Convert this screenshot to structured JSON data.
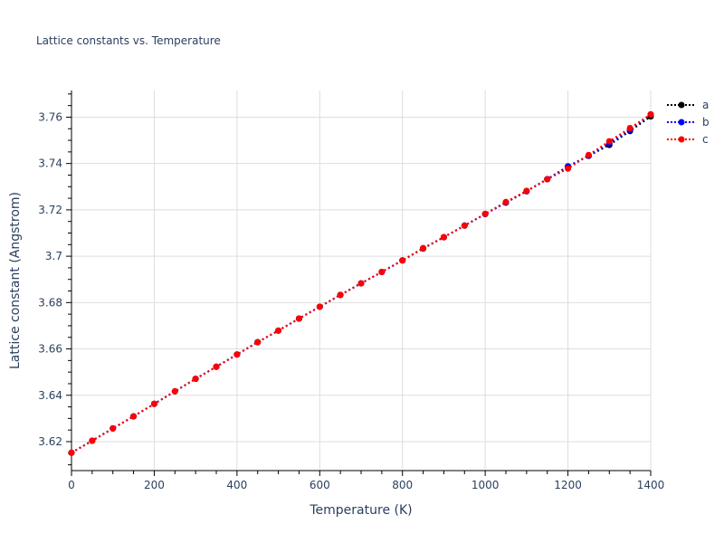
{
  "title": "Lattice constants vs. Temperature",
  "legend": [
    {
      "name": "a",
      "color": "#000000"
    },
    {
      "name": "b",
      "color": "#0000ff"
    },
    {
      "name": "c",
      "color": "#ff0000"
    }
  ],
  "chart_data": {
    "type": "line",
    "title": "Lattice constants vs. Temperature",
    "xlabel": "Temperature (K)",
    "ylabel": "Lattice constant (Angstrom)",
    "xlim": [
      0,
      1400
    ],
    "ylim": [
      3.6075,
      3.7715
    ],
    "x_ticks": [
      0,
      200,
      400,
      600,
      800,
      1000,
      1200,
      1400
    ],
    "y_ticks": [
      3.62,
      3.64,
      3.66,
      3.68,
      3.7,
      3.72,
      3.74,
      3.76
    ],
    "y_tick_labels": [
      "3.62",
      "3.64",
      "3.66",
      "3.68",
      "3.7",
      "3.72",
      "3.74",
      "3.76"
    ],
    "grid": true,
    "legend_position": "top-right outside",
    "line_style": "dotted with markers",
    "x": [
      0,
      50,
      100,
      150,
      200,
      250,
      300,
      350,
      400,
      450,
      500,
      550,
      600,
      650,
      700,
      750,
      800,
      850,
      900,
      950,
      1000,
      1050,
      1100,
      1150,
      1200,
      1250,
      1300,
      1350,
      1400
    ],
    "series": [
      {
        "name": "a",
        "color": "#000000",
        "values": [
          3.6152,
          3.6204,
          3.6257,
          3.6309,
          3.6363,
          3.6417,
          3.6471,
          3.6523,
          3.6576,
          3.6629,
          3.6679,
          3.6731,
          3.6782,
          3.6833,
          3.6883,
          3.6932,
          3.6982,
          3.7033,
          3.7082,
          3.7132,
          3.7182,
          3.7231,
          3.728,
          3.7332,
          3.7385,
          3.7433,
          3.748,
          3.754,
          3.7603
        ]
      },
      {
        "name": "b",
        "color": "#0000ff",
        "values": [
          3.6152,
          3.6204,
          3.6257,
          3.6309,
          3.6363,
          3.6417,
          3.6471,
          3.6523,
          3.6576,
          3.6629,
          3.6679,
          3.6731,
          3.6782,
          3.6833,
          3.6883,
          3.6932,
          3.6982,
          3.7034,
          3.7082,
          3.7132,
          3.7182,
          3.7232,
          3.7281,
          3.7333,
          3.7388,
          3.7434,
          3.7487,
          3.7545,
          3.7612
        ]
      },
      {
        "name": "c",
        "color": "#ff0000",
        "values": [
          3.6152,
          3.6204,
          3.6257,
          3.6309,
          3.6363,
          3.6417,
          3.6471,
          3.6523,
          3.6576,
          3.6629,
          3.6679,
          3.6731,
          3.6782,
          3.6833,
          3.6883,
          3.6932,
          3.6982,
          3.7035,
          3.7082,
          3.7132,
          3.7183,
          3.7234,
          3.7282,
          3.7332,
          3.7378,
          3.7437,
          3.7496,
          3.7553,
          3.7612
        ]
      }
    ]
  }
}
